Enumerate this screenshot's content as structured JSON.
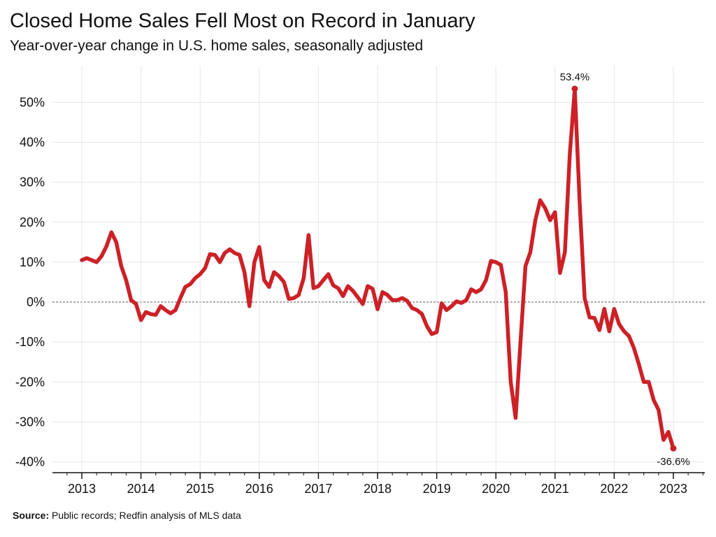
{
  "title": "Closed Home Sales Fell Most on Record in January",
  "subtitle": "Year-over-year change in U.S. home sales, seasonally adjusted",
  "source_label": "Source:",
  "source_text": "Public records; Redfin analysis of MLS data",
  "chart_data": {
    "type": "line",
    "title": "Closed Home Sales Fell Most on Record in January",
    "subtitle": "Year-over-year change in U.S. home sales, seasonally adjusted",
    "x_start": "2013-01",
    "frequency": "monthly",
    "x_tick_labels": [
      "2013",
      "2014",
      "2015",
      "2016",
      "2017",
      "2018",
      "2019",
      "2020",
      "2021",
      "2022",
      "2023"
    ],
    "y_tick_values": [
      -40,
      -30,
      -20,
      -10,
      0,
      10,
      20,
      30,
      40,
      50
    ],
    "y_tick_labels": [
      "-40%",
      "-30%",
      "-20%",
      "-10%",
      "0%",
      "10%",
      "20%",
      "30%",
      "40%",
      "50%"
    ],
    "ylim": [
      -42.7,
      59
    ],
    "xlim": [
      "2012-06",
      "2023-07"
    ],
    "grid": true,
    "zero_line": "dashed",
    "line_color": "#cc2127",
    "values": [
      10.5,
      11,
      10.5,
      10,
      11.5,
      14,
      17.5,
      15,
      9,
      5.5,
      0.5,
      -0.5,
      -4.5,
      -2.5,
      -3,
      -3.2,
      -1,
      -2,
      -2.8,
      -2,
      1,
      3.8,
      4.5,
      6,
      7,
      8.5,
      12,
      11.8,
      10,
      12.3,
      13.2,
      12.3,
      11.8,
      7.5,
      -1,
      10,
      13.8,
      5.5,
      3.8,
      7.5,
      6.5,
      5,
      0.8,
      1,
      1.8,
      6,
      16.8,
      3.5,
      4,
      5.5,
      7,
      4.2,
      3.5,
      1.5,
      4,
      2.8,
      1.2,
      -0.5,
      4,
      3.3,
      -1.8,
      2.5,
      1.8,
      0.5,
      0.5,
      1,
      0.3,
      -1.5,
      -2,
      -3,
      -6,
      -8,
      -7.5,
      -0.3,
      -2,
      -1,
      0.2,
      -0.2,
      0.5,
      3.2,
      2.5,
      3.2,
      5.5,
      10.3,
      10,
      9.3,
      2.5,
      -20,
      -29,
      -10,
      9,
      12.5,
      20.5,
      25.5,
      23.5,
      20.5,
      22.5,
      7.3,
      12.5,
      37,
      53.4,
      25,
      1,
      -3.8,
      -4,
      -7,
      -1.7,
      -7.3,
      -1.7,
      -5.5,
      -7.3,
      -8.5,
      -11.5,
      -15.5,
      -20,
      -20,
      -24.5,
      -27,
      -34.5,
      -32.5,
      -36.6
    ],
    "annotations": [
      {
        "x": "2021-05",
        "value": 53.4,
        "text": "53.4%"
      },
      {
        "x": "2023-01",
        "value": -36.6,
        "text": "-36.6%"
      }
    ]
  }
}
